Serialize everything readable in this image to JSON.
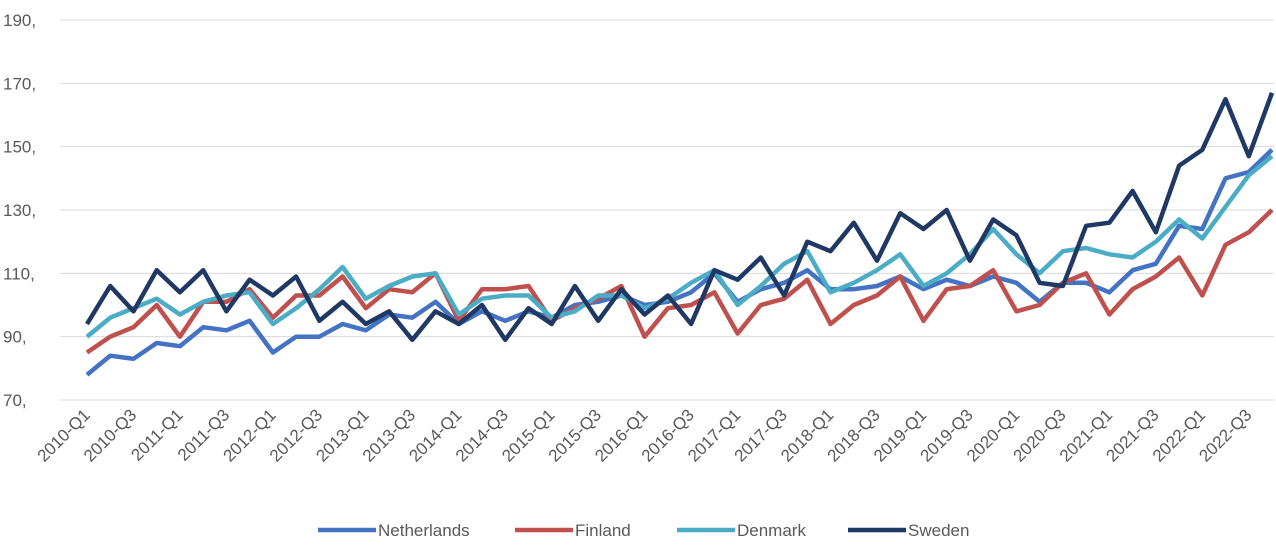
{
  "chart_data": {
    "type": "line",
    "categories": [
      "2010-Q1",
      null,
      "2010-Q3",
      null,
      "2011-Q1",
      null,
      "2011-Q3",
      null,
      "2012-Q1",
      null,
      "2012-Q3",
      null,
      "2013-Q1",
      null,
      "2013-Q3",
      null,
      "2014-Q1",
      null,
      "2014-Q3",
      null,
      "2015-Q1",
      null,
      "2015-Q3",
      null,
      "2016-Q1",
      null,
      "2016-Q3",
      null,
      "2017-Q1",
      null,
      "2017-Q3",
      null,
      "2018-Q1",
      null,
      "2018-Q3",
      null,
      "2019-Q1",
      null,
      "2019-Q3",
      null,
      "2020-Q1",
      null,
      "2020-Q3",
      null,
      "2021-Q1",
      null,
      "2021-Q3",
      null,
      "2022-Q1",
      null,
      "2022-Q3",
      null
    ],
    "series": [
      {
        "name": "Netherlands",
        "color": "#4472c4",
        "values": [
          78,
          84,
          83,
          88,
          87,
          93,
          92,
          95,
          85,
          90,
          90,
          94,
          92,
          97,
          96,
          101,
          94,
          98,
          95,
          98,
          96,
          100,
          101,
          103,
          100,
          101,
          104,
          110,
          101,
          105,
          107,
          111,
          105,
          105,
          106,
          109,
          105,
          108,
          106,
          109,
          107,
          101,
          107,
          107,
          104,
          111,
          113,
          125,
          124,
          140,
          142,
          149
        ]
      },
      {
        "name": "Finland",
        "color": "#c0504d",
        "values": [
          85,
          90,
          93,
          100,
          90,
          101,
          101,
          105,
          96,
          103,
          103,
          109,
          99,
          105,
          104,
          110,
          95,
          105,
          105,
          106,
          95,
          99,
          102,
          106,
          90,
          99,
          100,
          104,
          91,
          100,
          102,
          108,
          94,
          100,
          103,
          109,
          95,
          105,
          106,
          111,
          98,
          100,
          107,
          110,
          97,
          105,
          109,
          115,
          103,
          119,
          123,
          130
        ]
      },
      {
        "name": "Denmark",
        "color": "#4bacc6",
        "values": [
          90,
          96,
          99,
          102,
          97,
          101,
          103,
          104,
          94,
          99,
          105,
          112,
          102,
          106,
          109,
          110,
          97,
          102,
          103,
          103,
          96,
          98,
          103,
          103,
          99,
          102,
          107,
          111,
          100,
          106,
          113,
          117,
          104,
          107,
          111,
          116,
          106,
          110,
          116,
          124,
          116,
          110,
          117,
          118,
          116,
          115,
          120,
          127,
          121,
          131,
          141,
          147
        ]
      },
      {
        "name": "Sweden",
        "color": "#1f3864",
        "values": [
          94,
          106,
          98,
          111,
          104,
          111,
          98,
          108,
          103,
          109,
          95,
          101,
          94,
          98,
          89,
          98,
          94,
          100,
          89,
          99,
          94,
          106,
          95,
          105,
          97,
          103,
          94,
          111,
          108,
          115,
          103,
          120,
          117,
          126,
          114,
          129,
          124,
          130,
          114,
          127,
          122,
          107,
          106,
          125,
          126,
          136,
          123,
          144,
          149,
          165,
          147,
          167
        ]
      }
    ],
    "ylim": [
      70,
      190
    ],
    "yticks": [
      {
        "value": 70,
        "label": "70,"
      },
      {
        "value": 90,
        "label": "90,"
      },
      {
        "value": 110,
        "label": "110,"
      },
      {
        "value": 130,
        "label": "130,"
      },
      {
        "value": 150,
        "label": "150,"
      },
      {
        "value": 170,
        "label": "170,"
      },
      {
        "value": 190,
        "label": "190,"
      }
    ],
    "grid": true,
    "legend": "bottom"
  }
}
